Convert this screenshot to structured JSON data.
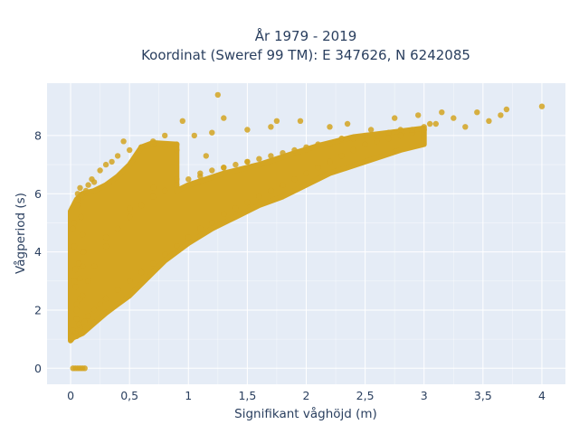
{
  "chart_data": {
    "type": "scatter",
    "title_line1": "År 1979 - 2019",
    "title_line2": "Koordinat (Sweref 99 TM): E 347626, N 6242085",
    "xlabel": "Signifikant våghöjd (m)",
    "ylabel": "Vågperiod (s)",
    "xlim": [
      -0.2,
      4.2
    ],
    "ylim": [
      -0.55,
      9.8
    ],
    "x_ticks": [
      0,
      0.5,
      1,
      1.5,
      2,
      2.5,
      3,
      3.5,
      4
    ],
    "x_tick_labels": [
      "0",
      "0,5",
      "1",
      "1,5",
      "2",
      "2,5",
      "3",
      "3,5",
      "4"
    ],
    "y_ticks": [
      0,
      2,
      4,
      6,
      8
    ],
    "y_tick_labels": [
      "0",
      "2",
      "4",
      "6",
      "8"
    ],
    "grid": true,
    "legend": "none",
    "colors": {
      "marker": "#d4a521",
      "plot_bg": "#e5ecf6",
      "grid": "#ffffff",
      "text": "#2a3f5f"
    },
    "series": [
      {
        "x": [
          0.02,
          0.05,
          0.08,
          0.11,
          0.03,
          0.06,
          0.1,
          0.04,
          0.07,
          0.09,
          0.03,
          0.05,
          0.08,
          0.04,
          0.02,
          0.06,
          0.04,
          0.07,
          0.03,
          0.05,
          0.06,
          0.08,
          0.1,
          0.13,
          0.15,
          0.18,
          0.2,
          0.25,
          0.3,
          0.35,
          0.4,
          0.5,
          0.6,
          0.7,
          0.8,
          0.9,
          0.05,
          0.08,
          0.12,
          0.15,
          0.2,
          0.25,
          0.3,
          0.4,
          0.5,
          0.6,
          0.7,
          0.8,
          0.9,
          1.0,
          1.1,
          1.2,
          1.3,
          1.4,
          1.5,
          1.6,
          1.7,
          1.8,
          1.9,
          2.0,
          2.1,
          2.2,
          2.3,
          2.4,
          2.5,
          2.6,
          2.7,
          2.8,
          2.9,
          3.0,
          0.1,
          0.15,
          0.2,
          0.3,
          0.4,
          0.5,
          0.6,
          0.7,
          0.8,
          0.9,
          1.0,
          1.1,
          1.2,
          1.3,
          1.4,
          1.5,
          1.6,
          1.8,
          2.0,
          2.2,
          2.4,
          2.6,
          2.8,
          3.0,
          0.45,
          0.6,
          0.7,
          0.8,
          0.9,
          0.95,
          1.05,
          1.15,
          1.2,
          1.25,
          1.3,
          1.5,
          1.7,
          1.75,
          1.95,
          2.2,
          2.35,
          2.55,
          2.75,
          2.95,
          3.05,
          3.15,
          3.25,
          3.35,
          3.45,
          3.55,
          3.65,
          3.7,
          4.0,
          0.1,
          0.3,
          0.5,
          0.7,
          0.9,
          1.1,
          1.3,
          1.5,
          1.7,
          1.9,
          2.1,
          2.3,
          2.5,
          2.7,
          2.9,
          3.1,
          0.02,
          0.04,
          0.06,
          0.08,
          0.1,
          0.12
        ],
        "y": [
          1.3,
          2.2,
          3.1,
          4.0,
          5.0,
          5.8,
          4.6,
          2.8,
          3.6,
          5.2,
          4.2,
          1.7,
          2.4,
          3.4,
          4.8,
          5.6,
          1.2,
          1.5,
          3.0,
          2.0,
          6.0,
          6.2,
          5.9,
          6.1,
          6.3,
          6.5,
          6.4,
          6.8,
          7.0,
          7.1,
          7.3,
          7.5,
          7.6,
          7.7,
          7.6,
          7.5,
          1.1,
          1.4,
          1.6,
          1.8,
          2.0,
          2.2,
          2.4,
          2.7,
          3.0,
          3.3,
          3.6,
          3.9,
          4.2,
          4.5,
          4.8,
          5.0,
          5.3,
          5.5,
          5.7,
          5.9,
          6.1,
          6.3,
          6.5,
          6.7,
          6.9,
          7.1,
          7.3,
          7.5,
          7.7,
          7.8,
          7.9,
          8.0,
          8.1,
          8.2,
          2.5,
          3.0,
          3.5,
          4.2,
          4.8,
          5.2,
          5.6,
          5.9,
          6.1,
          6.3,
          6.5,
          6.6,
          6.8,
          6.9,
          7.0,
          7.1,
          7.2,
          7.4,
          7.6,
          7.7,
          7.9,
          8.0,
          8.2,
          8.3,
          7.8,
          7.6,
          7.8,
          8.0,
          7.7,
          8.5,
          8.0,
          7.3,
          8.1,
          9.4,
          8.6,
          8.2,
          8.3,
          8.5,
          8.5,
          8.3,
          8.4,
          8.2,
          8.6,
          8.7,
          8.4,
          8.8,
          8.6,
          8.3,
          8.8,
          8.5,
          8.7,
          8.9,
          9.0,
          3.5,
          4.5,
          5.5,
          6.2,
          6.5,
          6.7,
          6.9,
          7.1,
          7.3,
          7.5,
          7.7,
          7.9,
          8.0,
          8.1,
          8.2,
          8.4,
          0.0,
          0.0,
          0.0,
          0.0,
          0.0,
          0.0
        ]
      }
    ]
  }
}
